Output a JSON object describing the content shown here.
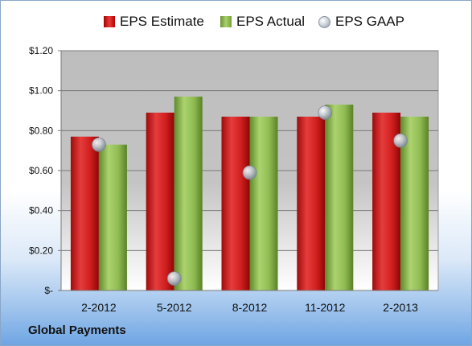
{
  "chart_data": {
    "type": "bar",
    "categories": [
      "2-2012",
      "5-2012",
      "8-2012",
      "11-2012",
      "2-2013"
    ],
    "series": [
      {
        "name": "EPS Estimate",
        "kind": "bar",
        "color": "#cc1d1d",
        "values": [
          0.77,
          0.89,
          0.87,
          0.87,
          0.89
        ]
      },
      {
        "name": "EPS Actual",
        "kind": "bar",
        "color": "#8fbb52",
        "values": [
          0.73,
          0.97,
          0.87,
          0.93,
          0.87
        ]
      },
      {
        "name": "EPS GAAP",
        "kind": "marker",
        "color": "#b8c1cc",
        "values": [
          0.73,
          0.06,
          0.59,
          0.89,
          0.75
        ]
      }
    ],
    "yticks": [
      {
        "value": 0,
        "label": "$-"
      },
      {
        "value": 0.2,
        "label": "$0.20"
      },
      {
        "value": 0.4,
        "label": "$0.40"
      },
      {
        "value": 0.6,
        "label": "$0.60"
      },
      {
        "value": 0.8,
        "label": "$0.80"
      },
      {
        "value": 1.0,
        "label": "$1.00"
      },
      {
        "value": 1.2,
        "label": "$1.20"
      }
    ],
    "ylim": [
      0,
      1.2
    ],
    "grid": true,
    "legend": "top-center",
    "company": "Global Payments"
  }
}
